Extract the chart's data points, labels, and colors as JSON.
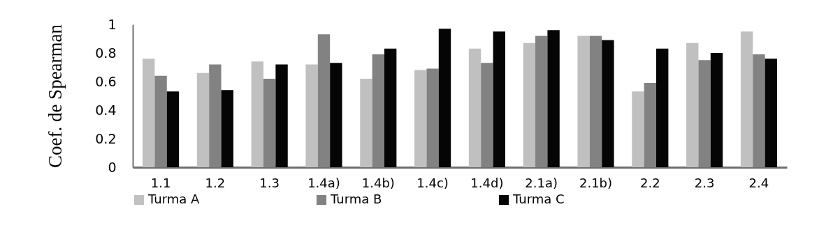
{
  "chart_data": {
    "type": "bar",
    "ylabel": "Coef. de Spearman",
    "categories": [
      "1.1",
      "1.2",
      "1.3",
      "1.4a)",
      "1.4b)",
      "1.4c)",
      "1.4d)",
      "2.1a)",
      "2.1b)",
      "2.2",
      "2.3",
      "2.4"
    ],
    "series": [
      {
        "name": "Turma A",
        "color": "#c0c0c0",
        "values": [
          0.76,
          0.66,
          0.74,
          0.72,
          0.62,
          0.68,
          0.83,
          0.87,
          0.92,
          0.53,
          0.87,
          0.95
        ]
      },
      {
        "name": "Turma B",
        "color": "#828282",
        "values": [
          0.64,
          0.72,
          0.62,
          0.93,
          0.79,
          0.69,
          0.73,
          0.92,
          0.92,
          0.59,
          0.75,
          0.79
        ]
      },
      {
        "name": "Turma C",
        "color": "#050505",
        "values": [
          0.53,
          0.54,
          0.72,
          0.73,
          0.83,
          0.97,
          0.95,
          0.96,
          0.89,
          0.83,
          0.8,
          0.76
        ]
      }
    ],
    "ylim": [
      0,
      1
    ],
    "yticks": [
      0,
      0.2,
      0.4,
      0.6,
      0.8,
      1
    ],
    "grid": false,
    "legend": "bottom"
  }
}
